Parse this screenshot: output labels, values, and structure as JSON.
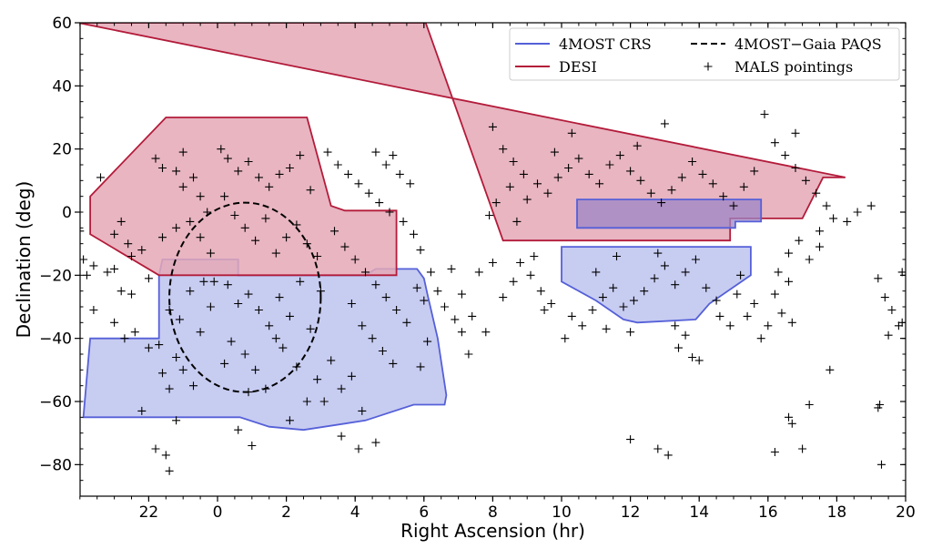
{
  "chart_data": {
    "type": "scatter",
    "title": "",
    "xlabel": "Right Ascension  (hr)",
    "ylabel": "Declination  (deg)",
    "x_axis": {
      "note": "RA axis wraps around 0 hr; values run 20 hr -> 24/0 hr -> 20 hr",
      "ticks": [
        22,
        0,
        2,
        4,
        6,
        8,
        10,
        12,
        14,
        16,
        18,
        20
      ]
    },
    "y_axis": {
      "range": [
        -90,
        60
      ],
      "ticks": [
        60,
        40,
        20,
        0,
        -20,
        -40,
        -60,
        -80
      ]
    },
    "legend": {
      "placement": "top-right",
      "entries": [
        {
          "label": "4MOST CRS",
          "color": "#5560d8",
          "style": "solid"
        },
        {
          "label": "4MOST−Gaia PAQS",
          "color": "#000000",
          "style": "dashed"
        },
        {
          "label": "DESI",
          "color": "#b31b3a",
          "style": "solid"
        },
        {
          "label": "MALS pointings",
          "color": "#000000",
          "style": "plus"
        }
      ]
    },
    "colors": {
      "desi_fill": "#e4a8b6",
      "desi_edge": "#b31b3a",
      "crs_fill": "#c4c9f0",
      "crs_edge": "#5560d8",
      "paqs_edge": "#000000"
    },
    "regions": {
      "desi_south_cap": [
        [
          20.3,
          5
        ],
        [
          22.5,
          30
        ],
        [
          2.6,
          30
        ],
        [
          3.3,
          2
        ],
        [
          3.7,
          0.5
        ],
        [
          5.2,
          0.5
        ],
        [
          5.2,
          -20
        ],
        [
          22.3,
          -20
        ],
        [
          20.3,
          -7
        ]
      ],
      "desi_north_cap": [
        [
          6.05,
          60
        ],
        [
          19.95,
          60
        ],
        [
          18.25,
          11
        ],
        [
          17.6,
          11
        ],
        [
          17.0,
          -2
        ],
        [
          14.9,
          -2
        ],
        [
          14.9,
          -9
        ],
        [
          8.3,
          -9
        ]
      ],
      "crs_south": [
        [
          22.4,
          -15
        ],
        [
          0.6,
          -15
        ],
        [
          0.6,
          -20
        ],
        [
          4.3,
          -20
        ],
        [
          4.6,
          -18
        ],
        [
          5.8,
          -18
        ],
        [
          6.0,
          -21
        ],
        [
          6.1,
          -26
        ],
        [
          6.4,
          -40
        ],
        [
          6.65,
          -58
        ],
        [
          6.6,
          -61
        ],
        [
          5.7,
          -61
        ],
        [
          4.3,
          -66
        ],
        [
          2.5,
          -69
        ],
        [
          1.5,
          -68
        ],
        [
          0.65,
          -65
        ],
        [
          20.1,
          -65
        ],
        [
          20.3,
          -40
        ],
        [
          22.3,
          -40
        ],
        [
          22.3,
          -20
        ]
      ],
      "crs_north_lower": [
        [
          10.0,
          -11
        ],
        [
          15.5,
          -11
        ],
        [
          15.5,
          -20
        ],
        [
          14.3,
          -29
        ],
        [
          13.9,
          -34
        ],
        [
          12.2,
          -35
        ],
        [
          11.8,
          -34
        ],
        [
          11.0,
          -28
        ],
        [
          10.0,
          -22
        ]
      ],
      "crs_north_upper": [
        [
          10.45,
          4
        ],
        [
          15.8,
          4
        ],
        [
          15.8,
          -3
        ],
        [
          15.05,
          -3
        ],
        [
          15.05,
          -5
        ],
        [
          10.45,
          -5
        ]
      ],
      "paqs_ellipse": {
        "center": [
          0.8,
          -27
        ],
        "radius_ra_hr": 2.2,
        "radius_dec_deg": 30
      }
    },
    "mals_pointings": [
      [
        20.1,
        -15
      ],
      [
        20.2,
        -20
      ],
      [
        20.4,
        -17
      ],
      [
        20.8,
        -19
      ],
      [
        21.0,
        -18
      ],
      [
        21.2,
        -25
      ],
      [
        21.0,
        -35
      ],
      [
        21.3,
        -40
      ],
      [
        21.6,
        -38
      ],
      [
        20.4,
        -31
      ],
      [
        20.6,
        11
      ],
      [
        21.0,
        -7
      ],
      [
        21.4,
        -10
      ],
      [
        21.8,
        -12
      ],
      [
        22.0,
        -21
      ],
      [
        21.5,
        -26
      ],
      [
        22.6,
        -31
      ],
      [
        22.4,
        -8
      ],
      [
        22.8,
        -5
      ],
      [
        22.4,
        14
      ],
      [
        22.8,
        13
      ],
      [
        23.0,
        8
      ],
      [
        23.3,
        11
      ],
      [
        23.5,
        5
      ],
      [
        23.0,
        19
      ],
      [
        23.7,
        0
      ],
      [
        23.2,
        -3
      ],
      [
        23.5,
        -8
      ],
      [
        23.8,
        -13
      ],
      [
        22.2,
        17
      ],
      [
        21.2,
        -3
      ],
      [
        21.5,
        -14
      ],
      [
        22.0,
        -43
      ],
      [
        22.4,
        -51
      ],
      [
        22.6,
        -56
      ],
      [
        22.8,
        -66
      ],
      [
        22.2,
        -75
      ],
      [
        22.5,
        -77
      ],
      [
        22.6,
        -82
      ],
      [
        22.8,
        -46
      ],
      [
        23.0,
        -50
      ],
      [
        23.3,
        -55
      ],
      [
        23.5,
        -38
      ],
      [
        23.8,
        -30
      ],
      [
        23.6,
        -22
      ],
      [
        23.2,
        -25
      ],
      [
        22.9,
        -34
      ],
      [
        22.3,
        -42
      ],
      [
        21.8,
        -63
      ],
      [
        0.1,
        20
      ],
      [
        0.3,
        17
      ],
      [
        0.6,
        13
      ],
      [
        0.9,
        16
      ],
      [
        1.2,
        11
      ],
      [
        1.5,
        8
      ],
      [
        1.8,
        12
      ],
      [
        2.1,
        14
      ],
      [
        2.4,
        18
      ],
      [
        2.7,
        7
      ],
      [
        0.2,
        5
      ],
      [
        0.5,
        -1
      ],
      [
        0.8,
        -5
      ],
      [
        1.1,
        -9
      ],
      [
        1.4,
        -2
      ],
      [
        1.7,
        -13
      ],
      [
        2.0,
        -8
      ],
      [
        2.3,
        -4
      ],
      [
        2.6,
        -10
      ],
      [
        2.9,
        -14
      ],
      [
        23.9,
        -22
      ],
      [
        0.3,
        -23
      ],
      [
        0.6,
        -29
      ],
      [
        0.9,
        -26
      ],
      [
        1.2,
        -31
      ],
      [
        1.5,
        -36
      ],
      [
        1.8,
        -27
      ],
      [
        2.1,
        -33
      ],
      [
        2.4,
        -22
      ],
      [
        2.7,
        -37
      ],
      [
        3.0,
        -25
      ],
      [
        0.4,
        -41
      ],
      [
        0.8,
        -45
      ],
      [
        1.1,
        -50
      ],
      [
        1.4,
        -56
      ],
      [
        1.9,
        -43
      ],
      [
        2.3,
        -49
      ],
      [
        2.6,
        -60
      ],
      [
        2.9,
        -53
      ],
      [
        3.3,
        -47
      ],
      [
        0.9,
        -57
      ],
      [
        1.7,
        -40
      ],
      [
        0.6,
        -69
      ],
      [
        1.0,
        -74
      ],
      [
        2.1,
        -66
      ],
      [
        0.2,
        -48
      ],
      [
        3.1,
        -60
      ],
      [
        3.2,
        19
      ],
      [
        3.5,
        15
      ],
      [
        3.8,
        12
      ],
      [
        4.1,
        9
      ],
      [
        4.4,
        6
      ],
      [
        4.7,
        3
      ],
      [
        5.0,
        0
      ],
      [
        3.4,
        -6
      ],
      [
        3.7,
        -11
      ],
      [
        4.0,
        -15
      ],
      [
        4.3,
        -19
      ],
      [
        4.6,
        -23
      ],
      [
        4.9,
        -27
      ],
      [
        5.2,
        -31
      ],
      [
        5.5,
        -35
      ],
      [
        3.9,
        -29
      ],
      [
        4.2,
        -36
      ],
      [
        4.5,
        -40
      ],
      [
        4.8,
        -44
      ],
      [
        5.1,
        -48
      ],
      [
        3.6,
        -56
      ],
      [
        3.9,
        -52
      ],
      [
        4.2,
        -63
      ],
      [
        3.6,
        -71
      ],
      [
        4.1,
        -75
      ],
      [
        4.6,
        -73
      ],
      [
        4.6,
        19
      ],
      [
        4.9,
        15
      ],
      [
        5.3,
        12
      ],
      [
        5.6,
        9
      ],
      [
        5.1,
        18
      ],
      [
        5.4,
        -3
      ],
      [
        5.7,
        -7
      ],
      [
        5.9,
        -12
      ],
      [
        6.2,
        -19
      ],
      [
        6.4,
        -25
      ],
      [
        5.8,
        -24
      ],
      [
        6.0,
        -28
      ],
      [
        6.1,
        -41
      ],
      [
        6.6,
        -30
      ],
      [
        6.9,
        -34
      ],
      [
        7.1,
        -38
      ],
      [
        7.3,
        -45
      ],
      [
        7.4,
        -33
      ],
      [
        7.8,
        -38
      ],
      [
        8.0,
        -16
      ],
      [
        7.6,
        -19
      ],
      [
        6.8,
        -18
      ],
      [
        5.9,
        -49
      ],
      [
        7.1,
        -26
      ],
      [
        8.0,
        27
      ],
      [
        8.3,
        20
      ],
      [
        8.6,
        16
      ],
      [
        8.9,
        12
      ],
      [
        8.5,
        8
      ],
      [
        8.1,
        3
      ],
      [
        7.9,
        -1
      ],
      [
        8.7,
        -3
      ],
      [
        9.0,
        4
      ],
      [
        9.3,
        9
      ],
      [
        9.6,
        6
      ],
      [
        9.9,
        11
      ],
      [
        10.2,
        14
      ],
      [
        10.5,
        17
      ],
      [
        10.8,
        12
      ],
      [
        11.1,
        9
      ],
      [
        11.4,
        15
      ],
      [
        11.7,
        18
      ],
      [
        12.0,
        13
      ],
      [
        12.3,
        10
      ],
      [
        12.6,
        6
      ],
      [
        12.9,
        3
      ],
      [
        13.2,
        7
      ],
      [
        13.5,
        11
      ],
      [
        13.8,
        16
      ],
      [
        14.1,
        12
      ],
      [
        14.4,
        9
      ],
      [
        14.7,
        5
      ],
      [
        15.0,
        2
      ],
      [
        15.3,
        8
      ],
      [
        15.6,
        13
      ],
      [
        15.9,
        31
      ],
      [
        16.2,
        22
      ],
      [
        16.5,
        18
      ],
      [
        16.8,
        14
      ],
      [
        17.1,
        10
      ],
      [
        17.4,
        6
      ],
      [
        17.7,
        2
      ],
      [
        17.9,
        -2
      ],
      [
        17.5,
        -6
      ],
      [
        18.3,
        -3
      ],
      [
        18.6,
        0
      ],
      [
        19.0,
        2
      ],
      [
        16.8,
        25
      ],
      [
        13.0,
        28
      ],
      [
        10.3,
        25
      ],
      [
        9.8,
        19
      ],
      [
        12.2,
        21
      ],
      [
        8.8,
        -16
      ],
      [
        9.1,
        -20
      ],
      [
        9.4,
        -25
      ],
      [
        9.7,
        -29
      ],
      [
        9.5,
        -31
      ],
      [
        8.6,
        -22
      ],
      [
        8.3,
        -27
      ],
      [
        9.2,
        -14
      ],
      [
        10.3,
        -33
      ],
      [
        10.6,
        -36
      ],
      [
        10.9,
        -31
      ],
      [
        11.2,
        -27
      ],
      [
        11.5,
        -24
      ],
      [
        11.8,
        -30
      ],
      [
        12.1,
        -28
      ],
      [
        12.4,
        -25
      ],
      [
        12.7,
        -21
      ],
      [
        13.0,
        -17
      ],
      [
        13.3,
        -23
      ],
      [
        13.6,
        -19
      ],
      [
        13.9,
        -15
      ],
      [
        14.2,
        -24
      ],
      [
        14.5,
        -28
      ],
      [
        11.0,
        -19
      ],
      [
        11.6,
        -14
      ],
      [
        12.8,
        -13
      ],
      [
        10.1,
        -40
      ],
      [
        11.3,
        -37
      ],
      [
        12.0,
        -38
      ],
      [
        13.3,
        -36
      ],
      [
        13.6,
        -39
      ],
      [
        13.4,
        -43
      ],
      [
        13.8,
        -46
      ],
      [
        14.0,
        -47
      ],
      [
        14.6,
        -33
      ],
      [
        14.9,
        -36
      ],
      [
        15.1,
        -26
      ],
      [
        15.4,
        -33
      ],
      [
        15.8,
        -40
      ],
      [
        16.0,
        -36
      ],
      [
        15.6,
        -29
      ],
      [
        16.3,
        -19
      ],
      [
        16.6,
        -13
      ],
      [
        16.9,
        -9
      ],
      [
        17.2,
        -15
      ],
      [
        17.5,
        -11
      ],
      [
        16.2,
        -26
      ],
      [
        16.4,
        -32
      ],
      [
        16.7,
        -35
      ],
      [
        16.6,
        -22
      ],
      [
        15.2,
        -20
      ],
      [
        12.0,
        -72
      ],
      [
        12.8,
        -75
      ],
      [
        13.1,
        -77
      ],
      [
        16.2,
        -76
      ],
      [
        16.6,
        -65
      ],
      [
        16.7,
        -67
      ],
      [
        17.2,
        -61
      ],
      [
        17.0,
        -75
      ],
      [
        17.8,
        -50
      ],
      [
        19.2,
        -21
      ],
      [
        19.4,
        -27
      ],
      [
        19.6,
        -31
      ],
      [
        19.8,
        -36
      ],
      [
        19.9,
        -35
      ],
      [
        19.5,
        -39
      ],
      [
        19.2,
        -62
      ],
      [
        19.25,
        -61
      ],
      [
        19.3,
        -80
      ],
      [
        19.9,
        -19
      ],
      [
        20.0,
        -6
      ]
    ]
  }
}
